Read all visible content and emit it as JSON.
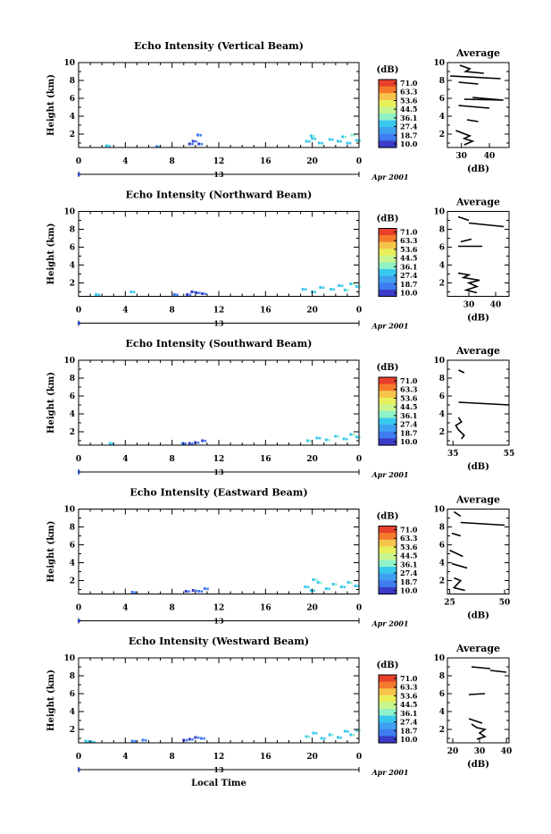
{
  "figure": {
    "xlabel": "Local Time",
    "date_label": "Apr 2001",
    "axis_date_marker": "13"
  },
  "colorbar": {
    "unit_label": "(dB)",
    "tick_labels": [
      "71.0",
      "63.3",
      "53.6",
      "44.5",
      "36.1",
      "27.4",
      "18.7",
      "10.0"
    ],
    "colors": [
      "#e8402a",
      "#f57a2c",
      "#f6c44b",
      "#e9ef5a",
      "#8ff2c8",
      "#39c8ee",
      "#3f7cf0",
      "#3b3cc9"
    ]
  },
  "chart_data": [
    {
      "type": "heatmap",
      "title": "Echo Intensity (Vertical Beam)",
      "ylabel": "Height (km)",
      "xlim": [
        0,
        24
      ],
      "ylim": [
        0.5,
        10
      ],
      "x_ticks": [
        "0",
        "4",
        "8",
        "12",
        "16",
        "20",
        "0"
      ],
      "y_ticks": [
        "2",
        "4",
        "6",
        "8",
        "10"
      ],
      "cells": [
        [
          2.4,
          0.7,
          23
        ],
        [
          6.7,
          0.6,
          20
        ],
        [
          9.5,
          0.9,
          15
        ],
        [
          9.8,
          1.2,
          14
        ],
        [
          10.2,
          1.9,
          16
        ],
        [
          10.3,
          0.9,
          14
        ],
        [
          19.5,
          1.2,
          25
        ],
        [
          20,
          1.5,
          24
        ],
        [
          20.6,
          1.0,
          25
        ],
        [
          21.5,
          1.4,
          25
        ],
        [
          22.2,
          1.2,
          24
        ],
        [
          22.6,
          1.7,
          27
        ],
        [
          23,
          1.0,
          25
        ],
        [
          23.4,
          1.9,
          30
        ],
        [
          23.8,
          1.3,
          24
        ],
        [
          19.9,
          1.8,
          26
        ]
      ],
      "average": {
        "xlabel": "(dB)",
        "title": "Average",
        "xlim": [
          25,
          47
        ],
        "x_ticks": [
          "30",
          "40"
        ],
        "y_ticks": [
          "2",
          "4",
          "6",
          "8",
          "10"
        ],
        "segments": [
          [
            [
              29.4,
              9.7
            ],
            [
              33,
              9.3
            ],
            [
              31.5,
              9.0
            ],
            [
              38,
              8.8
            ]
          ],
          [
            [
              26,
              8.5
            ],
            [
              44,
              8.2
            ]
          ],
          [
            [
              29,
              7.8
            ],
            [
              36,
              7.6
            ]
          ],
          [
            [
              34,
              6.1
            ],
            [
              45,
              5.8
            ],
            [
              31,
              5.9
            ]
          ],
          [
            [
              29,
              5.2
            ],
            [
              40,
              4.9
            ]
          ],
          [
            [
              32,
              3.6
            ],
            [
              36,
              3.4
            ]
          ],
          [
            [
              28,
              2.4
            ],
            [
              33,
              1.8
            ],
            [
              31,
              1.5
            ],
            [
              34,
              1.2
            ],
            [
              31,
              0.8
            ]
          ]
        ]
      }
    },
    {
      "type": "heatmap",
      "title": "Echo Intensity (Northward Beam)",
      "ylabel": "Height (km)",
      "xlim": [
        0,
        24
      ],
      "ylim": [
        0.5,
        10
      ],
      "x_ticks": [
        "0",
        "4",
        "8",
        "12",
        "16",
        "20",
        "0"
      ],
      "y_ticks": [
        "2",
        "4",
        "6",
        "8",
        "10"
      ],
      "cells": [
        [
          1.5,
          0.7,
          24
        ],
        [
          4.5,
          1.0,
          24
        ],
        [
          8.2,
          0.7,
          17
        ],
        [
          9.3,
          0.7,
          14
        ],
        [
          9.7,
          1.0,
          14
        ],
        [
          10.1,
          0.9,
          15
        ],
        [
          10.6,
          0.8,
          15
        ],
        [
          19.2,
          1.3,
          25
        ],
        [
          20,
          1.0,
          25
        ],
        [
          20.7,
          1.5,
          24
        ],
        [
          21.6,
          1.3,
          25
        ],
        [
          22.3,
          1.7,
          24
        ],
        [
          22.8,
          1.2,
          27
        ],
        [
          23.3,
          1.9,
          27
        ],
        [
          23.8,
          1.6,
          26
        ]
      ],
      "average": {
        "xlabel": "(dB)",
        "title": "Average",
        "xlim": [
          22,
          45
        ],
        "x_ticks": [
          "30",
          "40"
        ],
        "y_ticks": [
          "2",
          "4",
          "6",
          "8",
          "10"
        ],
        "segments": [
          [
            [
              26,
              9.4
            ],
            [
              30,
              9.0
            ]
          ],
          [
            [
              30,
              8.7
            ],
            [
              43,
              8.3
            ]
          ],
          [
            [
              27,
              6.6
            ],
            [
              31,
              6.9
            ]
          ],
          [
            [
              26,
              6.1
            ],
            [
              35,
              6.1
            ]
          ],
          [
            [
              26,
              3.1
            ],
            [
              30,
              2.9
            ],
            [
              28,
              2.6
            ],
            [
              34,
              2.3
            ],
            [
              30,
              2.0
            ],
            [
              33,
              1.6
            ],
            [
              29,
              1.2
            ],
            [
              33,
              0.9
            ]
          ]
        ]
      }
    },
    {
      "type": "heatmap",
      "title": "Echo Intensity (Southward Beam)",
      "ylabel": "Height (km)",
      "xlim": [
        0,
        24
      ],
      "ylim": [
        0.5,
        10
      ],
      "x_ticks": [
        "0",
        "4",
        "8",
        "12",
        "16",
        "20",
        "0"
      ],
      "y_ticks": [
        "2",
        "4",
        "6",
        "8",
        "10"
      ],
      "cells": [
        [
          2.7,
          0.7,
          22
        ],
        [
          8.9,
          0.7,
          16
        ],
        [
          9.5,
          0.7,
          15
        ],
        [
          10.0,
          0.8,
          15
        ],
        [
          10.6,
          1.0,
          15
        ],
        [
          19.6,
          1.0,
          26
        ],
        [
          20.4,
          1.3,
          25
        ],
        [
          21.2,
          1.1,
          26
        ],
        [
          22,
          1.5,
          27
        ],
        [
          22.7,
          1.2,
          25
        ],
        [
          23.3,
          1.7,
          26
        ],
        [
          23.8,
          1.4,
          27
        ]
      ],
      "average": {
        "xlabel": "(dB)",
        "title": "Average",
        "xlim": [
          33,
          55
        ],
        "x_ticks": [
          "35",
          "55"
        ],
        "y_ticks": [
          "2",
          "4",
          "6",
          "8",
          "10"
        ],
        "segments": [
          [
            [
              37,
              8.9
            ],
            [
              39,
              8.6
            ]
          ],
          [
            [
              37,
              5.3
            ],
            [
              55,
              5.0
            ]
          ],
          [
            [
              37,
              3.6
            ],
            [
              38,
              3.1
            ],
            [
              36,
              2.7
            ],
            [
              37,
              2.2
            ],
            [
              39,
              1.6
            ],
            [
              38,
              1.2
            ]
          ]
        ]
      }
    },
    {
      "type": "heatmap",
      "title": "Echo Intensity (Eastward Beam)",
      "ylabel": "Height (km)",
      "xlim": [
        0,
        24
      ],
      "ylim": [
        0.5,
        10
      ],
      "x_ticks": [
        "0",
        "4",
        "8",
        "12",
        "16",
        "20",
        "0"
      ],
      "y_ticks": [
        "2",
        "4",
        "6",
        "8",
        "10"
      ],
      "cells": [
        [
          4.6,
          0.7,
          16
        ],
        [
          9.2,
          0.8,
          15
        ],
        [
          9.8,
          0.9,
          14
        ],
        [
          10.3,
          0.8,
          17
        ],
        [
          10.8,
          1.1,
          16
        ],
        [
          19.4,
          1.3,
          25
        ],
        [
          19.9,
          0.9,
          24
        ],
        [
          20.5,
          1.8,
          26
        ],
        [
          21.2,
          1.1,
          25
        ],
        [
          21.8,
          1.6,
          27
        ],
        [
          22.5,
          1.3,
          25
        ],
        [
          23.1,
          1.8,
          26
        ],
        [
          23.7,
          1.4,
          25
        ],
        [
          20.1,
          2.1,
          26
        ]
      ],
      "average": {
        "xlabel": "(dB)",
        "title": "Average",
        "xlim": [
          24,
          52
        ],
        "x_ticks": [
          "25",
          "50"
        ],
        "y_ticks": [
          "2",
          "4",
          "6",
          "8",
          "10"
        ],
        "segments": [
          [
            [
              27,
              9.7
            ],
            [
              30,
              9.2
            ]
          ],
          [
            [
              30,
              8.5
            ],
            [
              50,
              8.2
            ]
          ],
          [
            [
              26,
              7.3
            ],
            [
              30,
              7.0
            ]
          ],
          [
            [
              25,
              5.4
            ],
            [
              31,
              4.7
            ]
          ],
          [
            [
              26,
              3.9
            ],
            [
              33,
              3.4
            ]
          ],
          [
            [
              27,
              2.3
            ],
            [
              30,
              2.0
            ],
            [
              27,
              1.2
            ],
            [
              32,
              0.9
            ]
          ]
        ]
      }
    },
    {
      "type": "heatmap",
      "title": "Echo Intensity (Westward Beam)",
      "ylabel": "Height (km)",
      "xlim": [
        0,
        24
      ],
      "ylim": [
        0.5,
        10
      ],
      "x_ticks": [
        "0",
        "4",
        "8",
        "12",
        "16",
        "20",
        "0"
      ],
      "y_ticks": [
        "2",
        "4",
        "6",
        "8",
        "10"
      ],
      "cells": [
        [
          0.6,
          0.7,
          24
        ],
        [
          1.1,
          0.6,
          23
        ],
        [
          4.6,
          0.7,
          18
        ],
        [
          5.5,
          0.8,
          19
        ],
        [
          9.0,
          0.8,
          15
        ],
        [
          9.5,
          0.9,
          14
        ],
        [
          10,
          1.1,
          14
        ],
        [
          10.5,
          1.0,
          16
        ],
        [
          19.5,
          1.2,
          26
        ],
        [
          20.1,
          1.6,
          25
        ],
        [
          20.8,
          1.0,
          24
        ],
        [
          21.5,
          1.4,
          27
        ],
        [
          22.2,
          1.1,
          25
        ],
        [
          22.8,
          1.8,
          24
        ],
        [
          23.3,
          1.4,
          26
        ],
        [
          23.8,
          1.9,
          27
        ]
      ],
      "average": {
        "xlabel": "(dB)",
        "title": "Average",
        "xlim": [
          18,
          41
        ],
        "x_ticks": [
          "20",
          "30",
          "40"
        ],
        "y_ticks": [
          "2",
          "4",
          "6",
          "8",
          "10"
        ],
        "segments": [
          [
            [
              27,
              9.0
            ],
            [
              34,
              8.8
            ]
          ],
          [
            [
              34,
              8.6
            ],
            [
              40,
              8.4
            ]
          ],
          [
            [
              26,
              5.9
            ],
            [
              32,
              6.0
            ]
          ],
          [
            [
              26,
              3.2
            ],
            [
              31,
              2.7
            ]
          ],
          [
            [
              27,
              2.6
            ],
            [
              29,
              2.2
            ],
            [
              32,
              2.0
            ],
            [
              30,
              1.6
            ],
            [
              32,
              1.2
            ],
            [
              29,
              0.9
            ]
          ]
        ]
      }
    }
  ]
}
